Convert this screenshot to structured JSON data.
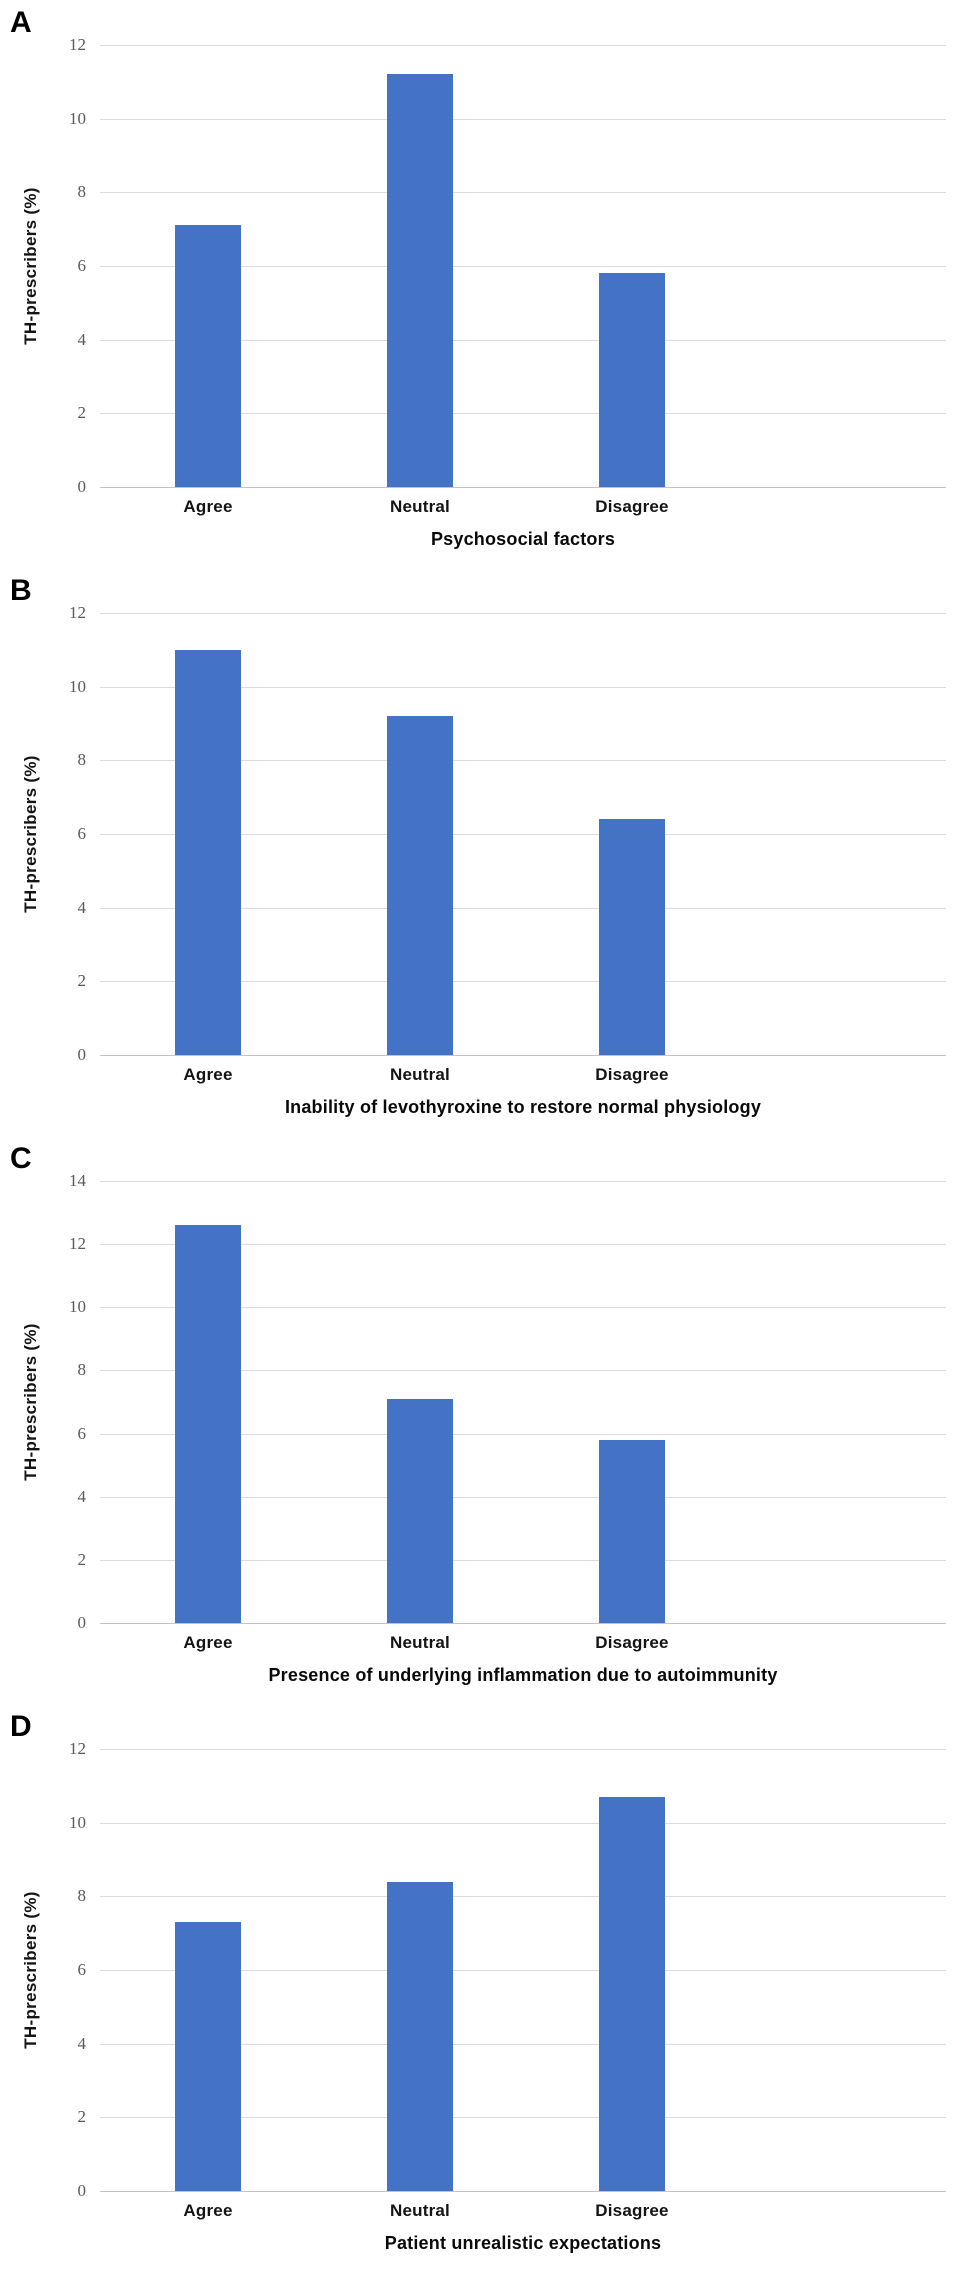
{
  "figure": {
    "bar_color": "#4472C4",
    "gridline_color": "#DCDCDC",
    "axis_line_color": "#C2C2C2",
    "tick_label_color": "#595959",
    "text_color": "#141414"
  },
  "chart_data": [
    {
      "type": "bar",
      "panel": "A",
      "title": "Psychosocial factors",
      "xlabel": "Psychosocial factors",
      "ylabel": "TH-prescribers (%)",
      "categories": [
        "Agree",
        "Neutral",
        "Disagree"
      ],
      "values": [
        7.1,
        11.2,
        5.8
      ],
      "ylim": [
        0,
        12
      ],
      "ytick_step": 2,
      "grid": true,
      "legend": false
    },
    {
      "type": "bar",
      "panel": "B",
      "title": "Inability of levothyroxine to restore normal physiology",
      "xlabel": "Inability of levothyroxine to restore normal physiology",
      "ylabel": "TH-prescribers (%)",
      "categories": [
        "Agree",
        "Neutral",
        "Disagree"
      ],
      "values": [
        11.0,
        9.2,
        6.4
      ],
      "ylim": [
        0,
        12
      ],
      "ytick_step": 2,
      "grid": true,
      "legend": false
    },
    {
      "type": "bar",
      "panel": "C",
      "title": "Presence of underlying inflammation due to autoimmunity",
      "xlabel": "Presence of underlying inflammation due to autoimmunity",
      "ylabel": "TH-prescribers (%)",
      "categories": [
        "Agree",
        "Neutral",
        "Disagree"
      ],
      "values": [
        12.6,
        7.1,
        5.8
      ],
      "ylim": [
        0,
        14
      ],
      "ytick_step": 2,
      "grid": true,
      "legend": false
    },
    {
      "type": "bar",
      "panel": "D",
      "title": "Patient unrealistic expectations",
      "xlabel": "Patient unrealistic expectations",
      "ylabel": "TH-prescribers (%)",
      "categories": [
        "Agree",
        "Neutral",
        "Disagree"
      ],
      "values": [
        7.3,
        8.4,
        10.7
      ],
      "ylim": [
        0,
        12
      ],
      "ytick_step": 2,
      "grid": true,
      "legend": false
    }
  ]
}
